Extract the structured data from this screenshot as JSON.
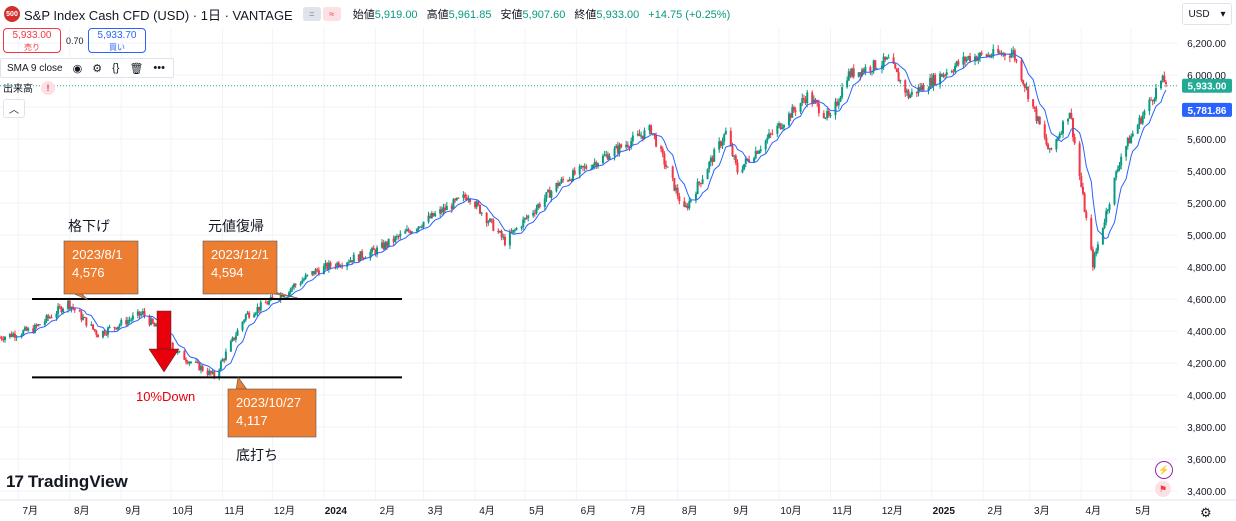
{
  "header": {
    "symbol_badge": "500",
    "title": "S&P Index Cash CFD (USD) · 1日 · VANTAGE",
    "icon_eq": "=",
    "icon_wave": "≈",
    "ohlc": {
      "open_label": "始値",
      "open": "5,919.00",
      "high_label": "高値",
      "high": "5,961.85",
      "low_label": "安値",
      "low": "5,907.60",
      "close_label": "終値",
      "close": "5,933.00",
      "change": "+14.75 (+0.25%)"
    }
  },
  "trade": {
    "sell_price": "5,933.00",
    "sell_label": "売り",
    "spread": "0.70",
    "buy_price": "5,933.70",
    "buy_label": "買い"
  },
  "indicator": {
    "label": "SMA 9 close"
  },
  "volume": {
    "label": "出来高",
    "warning": "!"
  },
  "currency": {
    "label": "USD"
  },
  "logo": {
    "mark": "17",
    "text": "TradingView"
  },
  "colors": {
    "up": "#089981",
    "down": "#f23645",
    "sma": "#2962ff",
    "callout_fill": "#ec7d31",
    "arrow": "#e8000b",
    "price_label": "#22ab94"
  },
  "chart_data": {
    "type": "candlestick",
    "x_axis_labels": [
      "7月",
      "8月",
      "9月",
      "10月",
      "11月",
      "12月",
      "2024",
      "2月",
      "3月",
      "4月",
      "5月",
      "6月",
      "7月",
      "8月",
      "9月",
      "10月",
      "11月",
      "12月",
      "2025",
      "2月",
      "3月",
      "4月",
      "5月"
    ],
    "y_ticks": [
      "6,200.00",
      "6,000.00",
      "5,800.00",
      "5,600.00",
      "5,400.00",
      "5,200.00",
      "5,000.00",
      "4,800.00",
      "4,600.00",
      "4,400.00",
      "4,200.00",
      "4,000.00",
      "3,800.00",
      "3,600.00",
      "3,400.00"
    ],
    "y_tick_values": [
      6200,
      6000,
      5800,
      5600,
      5400,
      5200,
      5000,
      4800,
      4600,
      4400,
      4200,
      4000,
      3800,
      3600,
      3400
    ],
    "ylim": [
      3340,
      6330
    ],
    "price_label": "5,933.00",
    "sma_label": "5,781.86",
    "current_price": 5933.0,
    "sma_value": 5781.86,
    "sma_period": 9,
    "trend_path": [
      {
        "date": "2023-06-20",
        "value": 4360
      },
      {
        "date": "2023-07-10",
        "value": 4410
      },
      {
        "date": "2023-07-31",
        "value": 4576
      },
      {
        "date": "2023-08-18",
        "value": 4380
      },
      {
        "date": "2023-09-14",
        "value": 4510
      },
      {
        "date": "2023-10-05",
        "value": 4260
      },
      {
        "date": "2023-10-27",
        "value": 4117
      },
      {
        "date": "2023-11-15",
        "value": 4500
      },
      {
        "date": "2023-12-01",
        "value": 4594
      },
      {
        "date": "2023-12-28",
        "value": 4780
      },
      {
        "date": "2024-02-01",
        "value": 4900
      },
      {
        "date": "2024-03-28",
        "value": 5250
      },
      {
        "date": "2024-04-19",
        "value": 4960
      },
      {
        "date": "2024-05-21",
        "value": 5320
      },
      {
        "date": "2024-07-16",
        "value": 5660
      },
      {
        "date": "2024-08-05",
        "value": 5150
      },
      {
        "date": "2024-08-30",
        "value": 5640
      },
      {
        "date": "2024-09-06",
        "value": 5400
      },
      {
        "date": "2024-10-18",
        "value": 5870
      },
      {
        "date": "2024-11-01",
        "value": 5720
      },
      {
        "date": "2024-11-11",
        "value": 6000
      },
      {
        "date": "2024-12-06",
        "value": 6090
      },
      {
        "date": "2024-12-18",
        "value": 5870
      },
      {
        "date": "2025-01-23",
        "value": 6110
      },
      {
        "date": "2025-02-19",
        "value": 6140
      },
      {
        "date": "2025-03-13",
        "value": 5510
      },
      {
        "date": "2025-03-25",
        "value": 5780
      },
      {
        "date": "2025-04-08",
        "value": 4820
      },
      {
        "date": "2025-04-25",
        "value": 5500
      },
      {
        "date": "2025-05-19",
        "value": 5960
      }
    ],
    "horizontal_lines": [
      4600,
      4110
    ],
    "annotations": {
      "drop_title": "格下げ",
      "drop_box": {
        "date": "2023/8/1",
        "value": "4,576"
      },
      "recover_title": "元値復帰",
      "recover_box": {
        "date": "2023/12/1",
        "value": "4,594"
      },
      "bottom_box": {
        "date": "2023/10/27",
        "value": "4,117"
      },
      "bottom_title": "底打ち",
      "drop_pct": "10%Down"
    }
  }
}
